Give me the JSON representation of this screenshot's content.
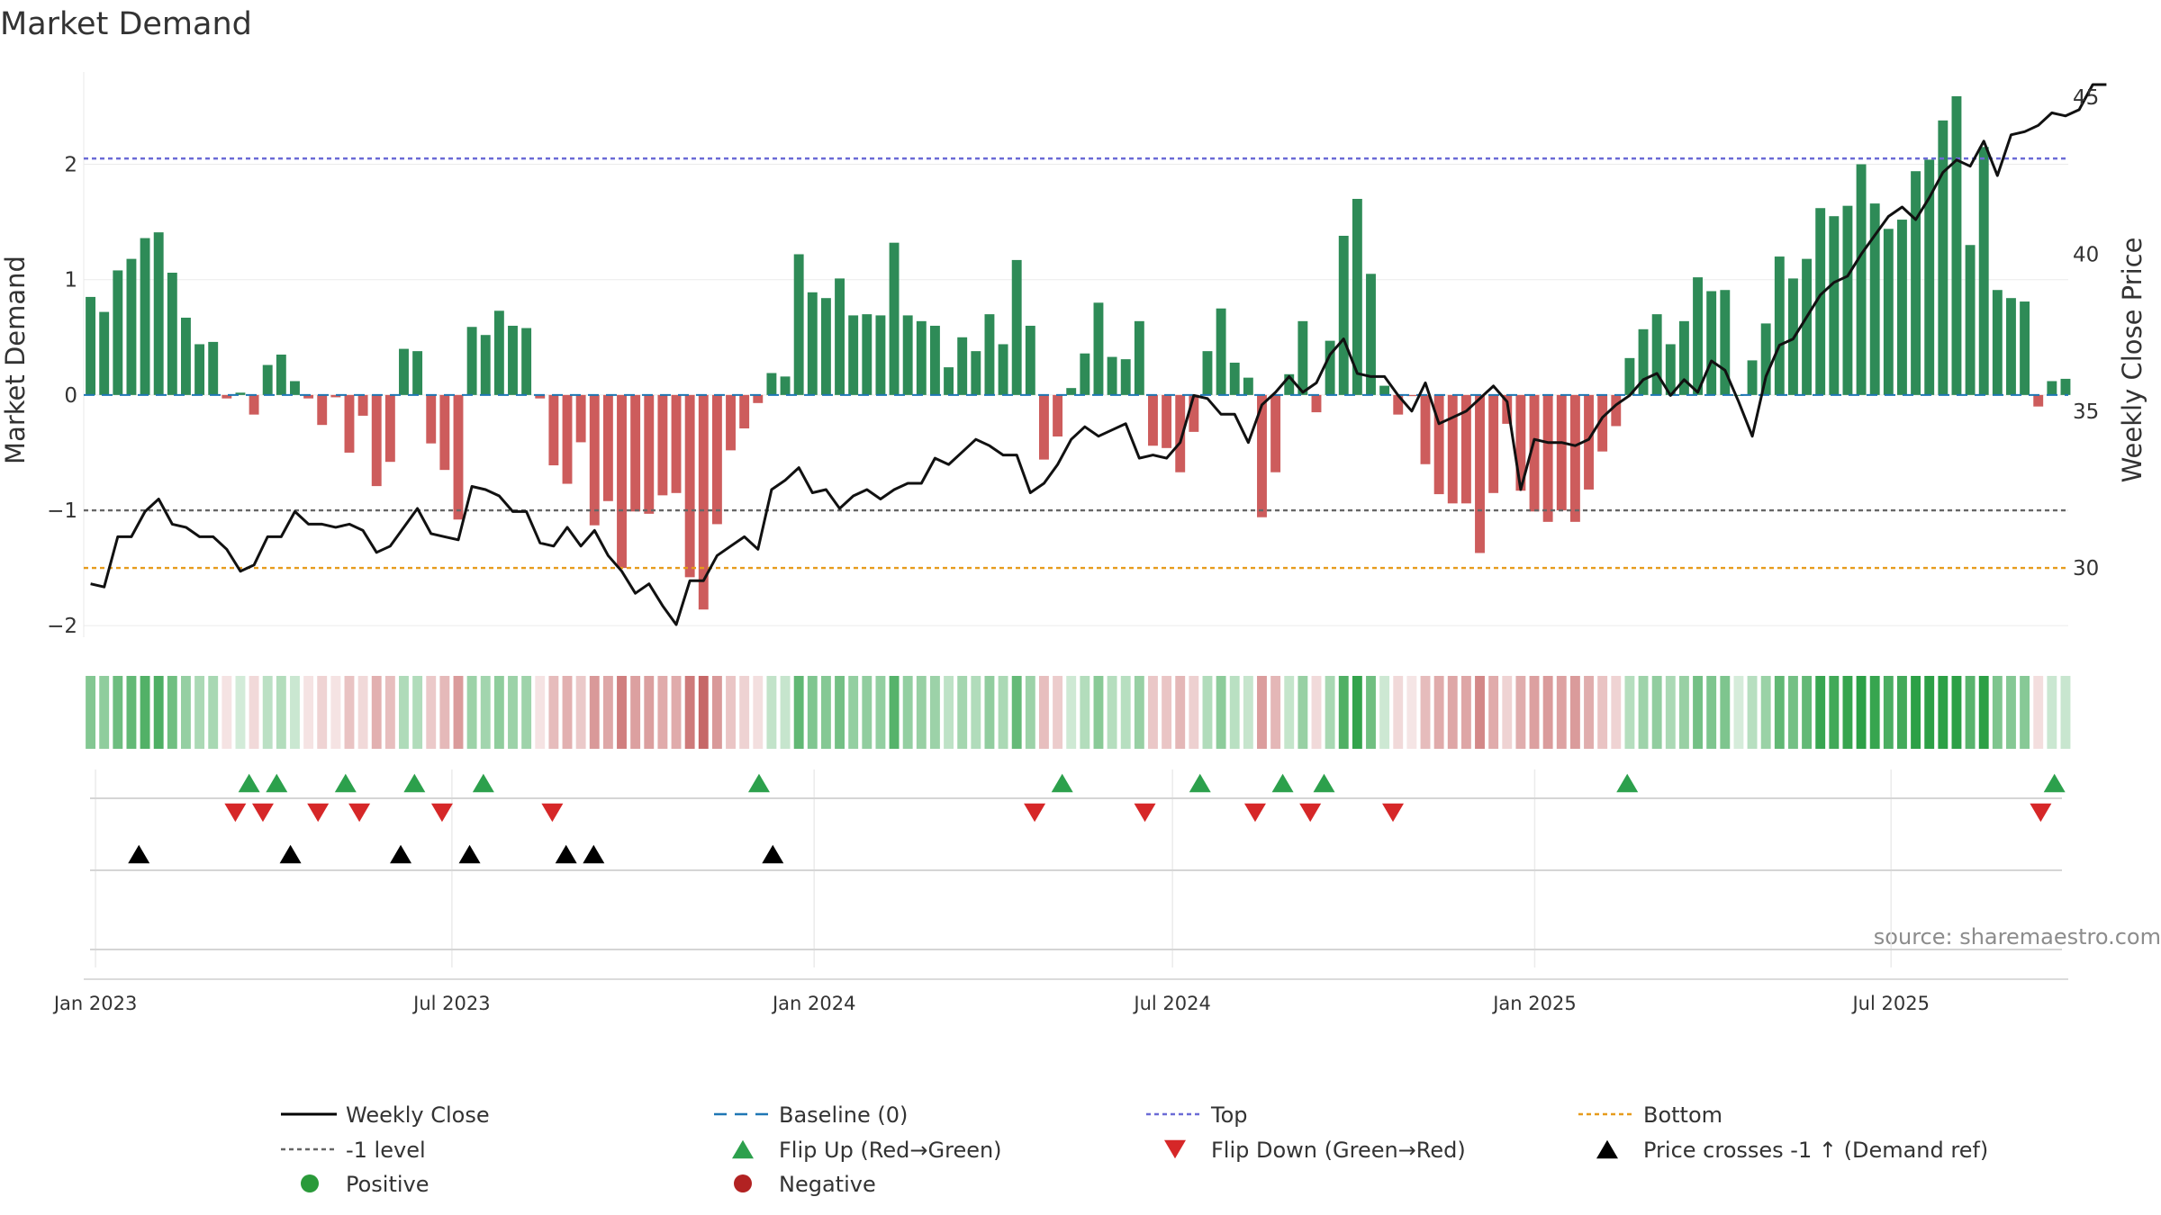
{
  "chart_data": {
    "type": "bar",
    "title": "Market Demand",
    "ylabel": "Market Demand",
    "y2label": "Weekly Close Price",
    "source": "source: sharemaestro.com",
    "ylim": [
      -2.1,
      2.8
    ],
    "y2lim": [
      27.8,
      45.8
    ],
    "yticks": [
      2,
      1,
      0,
      -1,
      -2
    ],
    "ytick_labels": [
      "2",
      "1",
      "0",
      "−1",
      "−2"
    ],
    "y2ticks": [
      45,
      40,
      35,
      30
    ],
    "y2tick_labels": [
      "45",
      "40",
      "35",
      "30"
    ],
    "x_start": "2022-12-26",
    "x_end": "2025-09-29",
    "x_ticks": [
      {
        "date": "2023-01-01",
        "label": "Jan 2023"
      },
      {
        "date": "2023-07-01",
        "label": "Jul 2023"
      },
      {
        "date": "2024-01-01",
        "label": "Jan 2024"
      },
      {
        "date": "2024-07-01",
        "label": "Jul 2024"
      },
      {
        "date": "2025-01-01",
        "label": "Jan 2025"
      },
      {
        "date": "2025-07-01",
        "label": "Jul 2025"
      }
    ],
    "reference_lines": {
      "top": 2.05,
      "minus_one": -1.0,
      "bottom": -1.5,
      "baseline": 0
    },
    "demand": [
      0.85,
      0.72,
      1.08,
      1.18,
      1.36,
      1.41,
      1.06,
      0.67,
      0.44,
      0.46,
      -0.03,
      0.02,
      -0.17,
      0.26,
      0.35,
      0.12,
      -0.03,
      -0.26,
      -0.02,
      -0.5,
      -0.18,
      -0.79,
      -0.58,
      0.4,
      0.38,
      -0.42,
      -0.65,
      -1.08,
      0.59,
      0.52,
      0.73,
      0.6,
      0.58,
      -0.03,
      -0.61,
      -0.77,
      -0.41,
      -1.13,
      -0.92,
      -1.5,
      -1.01,
      -1.03,
      -0.87,
      -0.85,
      -1.58,
      -1.86,
      -1.12,
      -0.48,
      -0.29,
      -0.07,
      0.19,
      0.16,
      1.22,
      0.89,
      0.84,
      1.01,
      0.69,
      0.7,
      0.69,
      1.32,
      0.69,
      0.64,
      0.6,
      0.24,
      0.5,
      0.38,
      0.7,
      0.44,
      1.17,
      0.6,
      -0.56,
      -0.36,
      0.06,
      0.36,
      0.8,
      0.33,
      0.31,
      0.64,
      -0.44,
      -0.46,
      -0.67,
      -0.32,
      0.38,
      0.75,
      0.28,
      0.15,
      -1.06,
      -0.67,
      0.18,
      0.64,
      -0.15,
      0.47,
      1.38,
      1.7,
      1.05,
      0.08,
      -0.17,
      -0.01,
      -0.6,
      -0.86,
      -0.94,
      -0.94,
      -1.37,
      -0.85,
      -0.25,
      -0.83,
      -1.01,
      -1.1,
      -1.0,
      -1.1,
      -0.82,
      -0.49,
      -0.27,
      0.32,
      0.57,
      0.7,
      0.44,
      0.64,
      1.02,
      0.9,
      0.91,
      0.0,
      0.3,
      0.62,
      1.2,
      1.01,
      1.18,
      1.62,
      1.55,
      1.64,
      2.0,
      1.66,
      1.44,
      1.52,
      1.94,
      2.04,
      2.38,
      2.59,
      1.3,
      2.15,
      0.91,
      0.84,
      0.81,
      -0.1,
      0.12,
      0.14
    ],
    "weekly_close": [
      29.5,
      29.4,
      31.0,
      31.0,
      31.8,
      32.2,
      31.4,
      31.3,
      31.0,
      31.0,
      30.6,
      29.9,
      30.1,
      31.0,
      31.0,
      31.8,
      31.4,
      31.4,
      31.3,
      31.4,
      31.2,
      30.5,
      30.7,
      31.3,
      31.9,
      31.1,
      31.0,
      30.9,
      32.6,
      32.5,
      32.3,
      31.8,
      31.8,
      30.8,
      30.7,
      31.3,
      30.7,
      31.2,
      30.4,
      29.9,
      29.2,
      29.5,
      28.8,
      28.2,
      29.6,
      29.6,
      30.4,
      30.7,
      31.0,
      30.6,
      32.5,
      32.8,
      33.2,
      32.4,
      32.5,
      31.9,
      32.3,
      32.5,
      32.2,
      32.5,
      32.7,
      32.7,
      33.5,
      33.3,
      33.7,
      34.1,
      33.9,
      33.6,
      33.6,
      32.4,
      32.7,
      33.3,
      34.1,
      34.5,
      34.2,
      34.4,
      34.6,
      33.5,
      33.6,
      33.5,
      34.0,
      35.5,
      35.4,
      34.9,
      34.9,
      34.0,
      35.2,
      35.6,
      36.1,
      35.6,
      35.9,
      36.8,
      37.3,
      36.2,
      36.1,
      36.1,
      35.5,
      35.0,
      35.9,
      34.6,
      34.8,
      35.0,
      35.4,
      35.8,
      35.3,
      32.5,
      34.1,
      34.0,
      34.0,
      33.9,
      34.1,
      34.8,
      35.2,
      35.5,
      36.0,
      36.2,
      35.5,
      36.0,
      35.6,
      36.6,
      36.3,
      35.3,
      34.2,
      36.1,
      37.1,
      37.3,
      38.0,
      38.7,
      39.1,
      39.3,
      40.0,
      40.6,
      41.2,
      41.5,
      41.1,
      41.8,
      42.6,
      43.0,
      42.8,
      43.6,
      42.5,
      43.8,
      43.9,
      44.1,
      44.5,
      44.4,
      44.6,
      45.4,
      45.4
    ],
    "flip_up": [
      "2023-03-20",
      "2023-04-03",
      "2023-05-08",
      "2023-06-12",
      "2023-07-17",
      "2023-12-04",
      "2024-05-06",
      "2024-07-15",
      "2024-08-26",
      "2024-09-16",
      "2025-02-17",
      "2025-09-22"
    ],
    "flip_down": [
      "2023-03-13",
      "2023-03-27",
      "2023-04-24",
      "2023-05-15",
      "2023-06-26",
      "2023-08-21",
      "2024-04-22",
      "2024-06-17",
      "2024-08-12",
      "2024-09-09",
      "2024-10-21",
      "2025-09-15"
    ],
    "price_crosses": [
      "2023-01-23",
      "2023-04-10",
      "2023-06-05",
      "2023-07-10",
      "2023-08-28",
      "2023-09-11",
      "2023-12-11"
    ],
    "legend": [
      {
        "key": "weekly_close",
        "label": "Weekly Close",
        "color": "#000000"
      },
      {
        "key": "baseline",
        "label": "Baseline (0)",
        "color": "#1f77b4"
      },
      {
        "key": "top",
        "label": "Top",
        "color": "#6b6bd6"
      },
      {
        "key": "bottom",
        "label": "Bottom",
        "color": "#e69b1c"
      },
      {
        "key": "minus_one",
        "label": "-1 level",
        "color": "#666666"
      },
      {
        "key": "flip_up",
        "label": "Flip Up (Red→Green)",
        "color": "#2ca04c"
      },
      {
        "key": "flip_down",
        "label": "Flip Down (Green→Red)",
        "color": "#d62728"
      },
      {
        "key": "price_cross",
        "label": "Price crosses -1 ↑ (Demand ref)",
        "color": "#000000"
      },
      {
        "key": "positive",
        "label": "Positive",
        "color": "#2a9a3a"
      },
      {
        "key": "negative",
        "label": "Negative",
        "color": "#b22222"
      }
    ],
    "colors": {
      "positive_bar": "#2e8b57",
      "negative_bar": "#cd5c5c",
      "close_line": "#111111"
    }
  }
}
